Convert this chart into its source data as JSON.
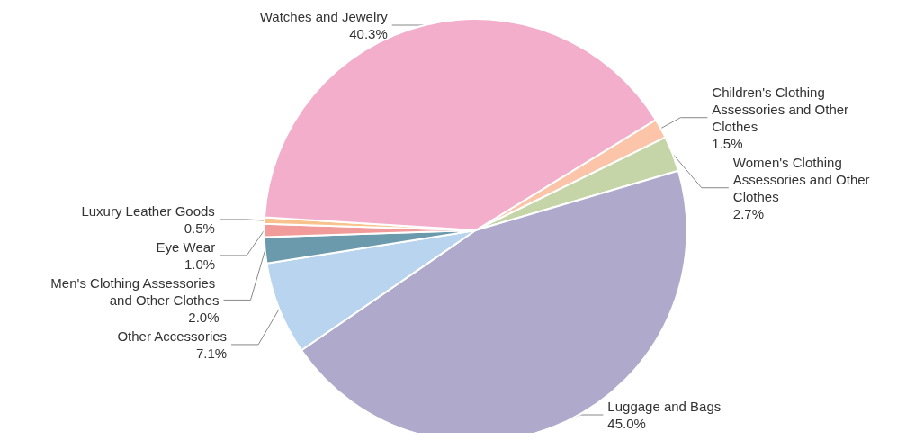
{
  "chart_data": {
    "type": "pie",
    "categories": [
      "Children's Clothing Assessories and Other Clothes",
      "Women's Clothing Assessories and Other Clothes",
      "Luggage and Bags",
      "Other Accessories",
      "Men's Clothing Assessories and Other Clothes",
      "Eye Wear",
      "Luxury Leather Goods",
      "Watches and Jewelry"
    ],
    "values": [
      1.5,
      2.7,
      45.0,
      7.1,
      2.0,
      1.0,
      0.5,
      40.3
    ],
    "value_labels": [
      "1.5%",
      "2.7%",
      "45.0%",
      "7.1%",
      "2.0%",
      "1.0%",
      "0.5%",
      "40.3%"
    ],
    "colors": [
      "#fcc4a8",
      "#c5d5a8",
      "#afaacb",
      "#b8d4ee",
      "#6a9aab",
      "#f29b9b",
      "#f8c28d",
      "#f2aecb"
    ],
    "legend": false
  }
}
